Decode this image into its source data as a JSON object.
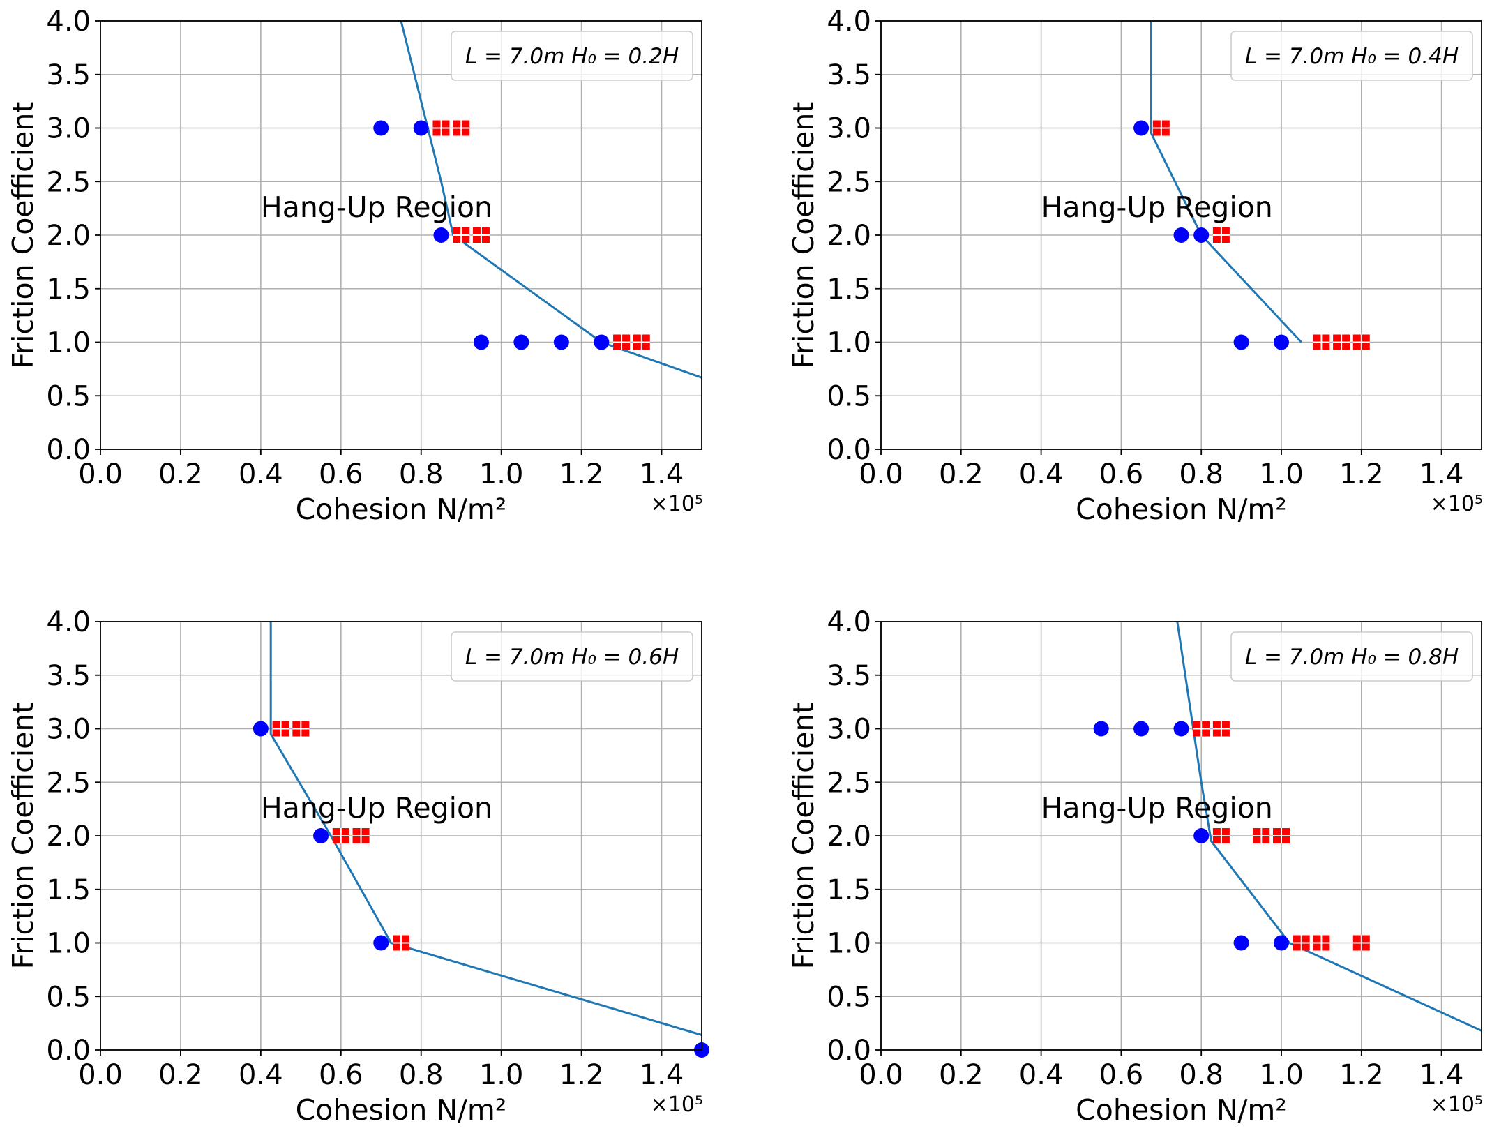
{
  "colors": {
    "boundary_line": "#1f77b4",
    "hang_up_marker": "#0000ff",
    "flow_marker": "#ff0000",
    "grid": "#b0b0b0"
  },
  "chart_data": [
    {
      "type": "scatter",
      "legend": {
        "text": "L = 7.0m H₀ = 0.2H",
        "placement": "top-right"
      },
      "xlabel": "Cohesion N/m²",
      "ylabel": "Friction Coefficient",
      "x_multiplier_label": "×10⁵",
      "xlim": [
        0.0,
        1.5
      ],
      "ylim": [
        0.0,
        4.0
      ],
      "x_ticks": [
        "0.0",
        "0.2",
        "0.4",
        "0.6",
        "0.8",
        "1.0",
        "1.2",
        "1.4"
      ],
      "y_ticks": [
        "0.0",
        "0.5",
        "1.0",
        "1.5",
        "2.0",
        "2.5",
        "3.0",
        "3.5",
        "4.0"
      ],
      "grid": true,
      "annotation": {
        "text": "Hang-Up Region",
        "x": 0.4,
        "y": 2.26
      },
      "boundary_line": {
        "x": [
          0.75,
          0.85,
          0.88,
          1.25,
          1.5
        ],
        "y": [
          4.0,
          2.5,
          2.0,
          1.0,
          0.67
        ]
      },
      "series": [
        {
          "marker": "circle",
          "color": "#0000ff",
          "points": [
            [
              0.7,
              3.0
            ],
            [
              0.8,
              3.0
            ],
            [
              0.85,
              2.0
            ],
            [
              0.95,
              1.0
            ],
            [
              1.05,
              1.0
            ],
            [
              1.15,
              1.0
            ],
            [
              1.25,
              1.0
            ]
          ]
        },
        {
          "marker": "square",
          "color": "#ff0000",
          "points": [
            [
              0.85,
              3.0
            ],
            [
              0.9,
              3.0
            ],
            [
              0.9,
              2.0
            ],
            [
              0.95,
              2.0
            ],
            [
              1.3,
              1.0
            ],
            [
              1.35,
              1.0
            ]
          ]
        }
      ]
    },
    {
      "type": "scatter",
      "legend": {
        "text": "L = 7.0m H₀ = 0.4H",
        "placement": "top-right"
      },
      "xlabel": "Cohesion N/m²",
      "ylabel": "Friction Coefficient",
      "x_multiplier_label": "×10⁵",
      "xlim": [
        0.0,
        1.5
      ],
      "ylim": [
        0.0,
        4.0
      ],
      "x_ticks": [
        "0.0",
        "0.2",
        "0.4",
        "0.6",
        "0.8",
        "1.0",
        "1.2",
        "1.4"
      ],
      "y_ticks": [
        "0.0",
        "0.5",
        "1.0",
        "1.5",
        "2.0",
        "2.5",
        "3.0",
        "3.5",
        "4.0"
      ],
      "grid": true,
      "annotation": {
        "text": "Hang-Up Region",
        "x": 0.4,
        "y": 2.26
      },
      "boundary_line": {
        "x": [
          0.675,
          0.675,
          0.675,
          0.8,
          1.05
        ],
        "y": [
          4.0,
          3.3,
          2.95,
          2.0,
          1.0
        ]
      },
      "series": [
        {
          "marker": "circle",
          "color": "#0000ff",
          "points": [
            [
              0.65,
              3.0
            ],
            [
              0.75,
              2.0
            ],
            [
              0.8,
              2.0
            ],
            [
              0.9,
              1.0
            ],
            [
              1.0,
              1.0
            ]
          ]
        },
        {
          "marker": "square",
          "color": "#ff0000",
          "points": [
            [
              0.7,
              3.0
            ],
            [
              0.85,
              2.0
            ],
            [
              1.1,
              1.0
            ],
            [
              1.15,
              1.0
            ],
            [
              1.2,
              1.0
            ]
          ]
        }
      ]
    },
    {
      "type": "scatter",
      "legend": {
        "text": "L = 7.0m H₀ = 0.6H",
        "placement": "top-right"
      },
      "xlabel": "Cohesion N/m²",
      "ylabel": "Friction Coefficient",
      "x_multiplier_label": "×10⁵",
      "xlim": [
        0.0,
        1.5
      ],
      "ylim": [
        0.0,
        4.0
      ],
      "x_ticks": [
        "0.0",
        "0.2",
        "0.4",
        "0.6",
        "0.8",
        "1.0",
        "1.2",
        "1.4"
      ],
      "y_ticks": [
        "0.0",
        "0.5",
        "1.0",
        "1.5",
        "2.0",
        "2.5",
        "3.0",
        "3.5",
        "4.0"
      ],
      "grid": true,
      "annotation": {
        "text": "Hang-Up Region",
        "x": 0.4,
        "y": 2.26
      },
      "boundary_line": {
        "x": [
          0.425,
          0.425,
          0.425,
          0.575,
          0.725,
          1.5
        ],
        "y": [
          4.0,
          3.3,
          2.95,
          2.0,
          1.0,
          0.14
        ]
      },
      "series": [
        {
          "marker": "circle",
          "color": "#0000ff",
          "points": [
            [
              0.4,
              3.0
            ],
            [
              0.55,
              2.0
            ],
            [
              0.7,
              1.0
            ],
            [
              1.5,
              0.0
            ]
          ]
        },
        {
          "marker": "square",
          "color": "#ff0000",
          "points": [
            [
              0.45,
              3.0
            ],
            [
              0.5,
              3.0
            ],
            [
              0.6,
              2.0
            ],
            [
              0.65,
              2.0
            ],
            [
              0.75,
              1.0
            ]
          ]
        }
      ]
    },
    {
      "type": "scatter",
      "legend": {
        "text": "L = 7.0m H₀ = 0.8H",
        "placement": "top-right"
      },
      "xlabel": "Cohesion N/m²",
      "ylabel": "Friction Coefficient",
      "x_multiplier_label": "×10⁵",
      "xlim": [
        0.0,
        1.5
      ],
      "ylim": [
        0.0,
        4.0
      ],
      "x_ticks": [
        "0.0",
        "0.2",
        "0.4",
        "0.6",
        "0.8",
        "1.0",
        "1.2",
        "1.4"
      ],
      "y_ticks": [
        "0.0",
        "0.5",
        "1.0",
        "1.5",
        "2.0",
        "2.5",
        "3.0",
        "3.5",
        "4.0"
      ],
      "grid": true,
      "annotation": {
        "text": "Hang-Up Region",
        "x": 0.4,
        "y": 2.26
      },
      "boundary_line": {
        "x": [
          0.74,
          0.8,
          0.825,
          1.02,
          1.5
        ],
        "y": [
          4.0,
          2.5,
          1.95,
          1.0,
          0.18
        ]
      },
      "series": [
        {
          "marker": "circle",
          "color": "#0000ff",
          "points": [
            [
              0.55,
              3.0
            ],
            [
              0.65,
              3.0
            ],
            [
              0.75,
              3.0
            ],
            [
              0.8,
              2.0
            ],
            [
              0.9,
              1.0
            ],
            [
              1.0,
              1.0
            ]
          ]
        },
        {
          "marker": "square",
          "color": "#ff0000",
          "points": [
            [
              0.8,
              3.0
            ],
            [
              0.85,
              3.0
            ],
            [
              0.85,
              2.0
            ],
            [
              0.95,
              2.0
            ],
            [
              1.0,
              2.0
            ],
            [
              1.05,
              1.0
            ],
            [
              1.1,
              1.0
            ],
            [
              1.2,
              1.0
            ]
          ]
        }
      ]
    }
  ]
}
